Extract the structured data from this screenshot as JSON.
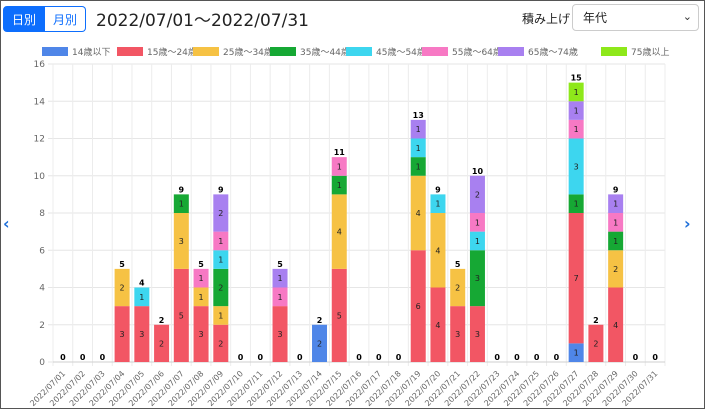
{
  "toggle": {
    "daily": "日別",
    "monthly": "月別"
  },
  "date_range": "2022/07/01～2022/07/31",
  "stack_label": "積み上げ",
  "stack_select": {
    "value": "年代"
  },
  "nav": {
    "prev": "‹",
    "next": "›"
  },
  "chart_data": {
    "type": "bar",
    "stacked": true,
    "title": "",
    "xlabel": "",
    "ylabel": "",
    "ylim": [
      0,
      16
    ],
    "yticks": [
      0,
      2,
      4,
      6,
      8,
      10,
      12,
      14,
      16
    ],
    "grid": true,
    "legend_position": "top",
    "categories": [
      "2022/07/01",
      "2022/07/02",
      "2022/07/03",
      "2022/07/04",
      "2022/07/05",
      "2022/07/06",
      "2022/07/07",
      "2022/07/08",
      "2022/07/09",
      "2022/07/10",
      "2022/07/11",
      "2022/07/12",
      "2022/07/13",
      "2022/07/14",
      "2022/07/15",
      "2022/07/16",
      "2022/07/17",
      "2022/07/18",
      "2022/07/19",
      "2022/07/20",
      "2022/07/21",
      "2022/07/22",
      "2022/07/23",
      "2022/07/24",
      "2022/07/25",
      "2022/07/26",
      "2022/07/27",
      "2022/07/28",
      "2022/07/29",
      "2022/07/30",
      "2022/07/31"
    ],
    "series": [
      {
        "name": "14歳以下",
        "color": "#4f86e8",
        "values": [
          0,
          0,
          0,
          0,
          0,
          0,
          0,
          0,
          0,
          0,
          0,
          0,
          0,
          2,
          0,
          0,
          0,
          0,
          0,
          0,
          0,
          0,
          0,
          0,
          0,
          0,
          1,
          0,
          0,
          0,
          0
        ]
      },
      {
        "name": "15歳～24歳",
        "color": "#f25664",
        "values": [
          0,
          0,
          0,
          3,
          3,
          2,
          5,
          3,
          2,
          0,
          0,
          3,
          0,
          0,
          5,
          0,
          0,
          0,
          6,
          4,
          3,
          3,
          0,
          0,
          0,
          0,
          7,
          2,
          4,
          0,
          0
        ]
      },
      {
        "name": "25歳～34歳",
        "color": "#f6c244",
        "values": [
          0,
          0,
          0,
          2,
          0,
          0,
          3,
          1,
          1,
          0,
          0,
          0,
          0,
          0,
          4,
          0,
          0,
          0,
          4,
          4,
          2,
          0,
          0,
          0,
          0,
          0,
          0,
          0,
          2,
          0,
          0
        ]
      },
      {
        "name": "35歳～44歳",
        "color": "#16a834",
        "values": [
          0,
          0,
          0,
          0,
          0,
          0,
          1,
          0,
          2,
          0,
          0,
          0,
          0,
          0,
          1,
          0,
          0,
          0,
          1,
          0,
          0,
          3,
          0,
          0,
          0,
          0,
          1,
          0,
          1,
          0,
          0
        ]
      },
      {
        "name": "45歳～54歳",
        "color": "#3dd6ef",
        "values": [
          0,
          0,
          0,
          0,
          1,
          0,
          0,
          0,
          1,
          0,
          0,
          0,
          0,
          0,
          0,
          0,
          0,
          0,
          1,
          1,
          0,
          1,
          0,
          0,
          0,
          0,
          3,
          0,
          0,
          0,
          0
        ]
      },
      {
        "name": "55歳～64歳",
        "color": "#f779c4",
        "values": [
          0,
          0,
          0,
          0,
          0,
          0,
          0,
          1,
          1,
          0,
          0,
          1,
          0,
          0,
          1,
          0,
          0,
          0,
          0,
          0,
          0,
          1,
          0,
          0,
          0,
          0,
          1,
          0,
          1,
          0,
          0
        ]
      },
      {
        "name": "65歳～74歳",
        "color": "#a880f0",
        "values": [
          0,
          0,
          0,
          0,
          0,
          0,
          0,
          0,
          2,
          0,
          0,
          1,
          0,
          0,
          0,
          0,
          0,
          0,
          1,
          0,
          0,
          2,
          0,
          0,
          0,
          0,
          1,
          0,
          1,
          0,
          0
        ]
      },
      {
        "name": "75歳以上",
        "color": "#8ee81a",
        "values": [
          0,
          0,
          0,
          0,
          0,
          0,
          0,
          0,
          0,
          0,
          0,
          0,
          0,
          0,
          0,
          0,
          0,
          0,
          0,
          0,
          0,
          0,
          0,
          0,
          0,
          0,
          1,
          0,
          0,
          0,
          0
        ]
      }
    ]
  }
}
